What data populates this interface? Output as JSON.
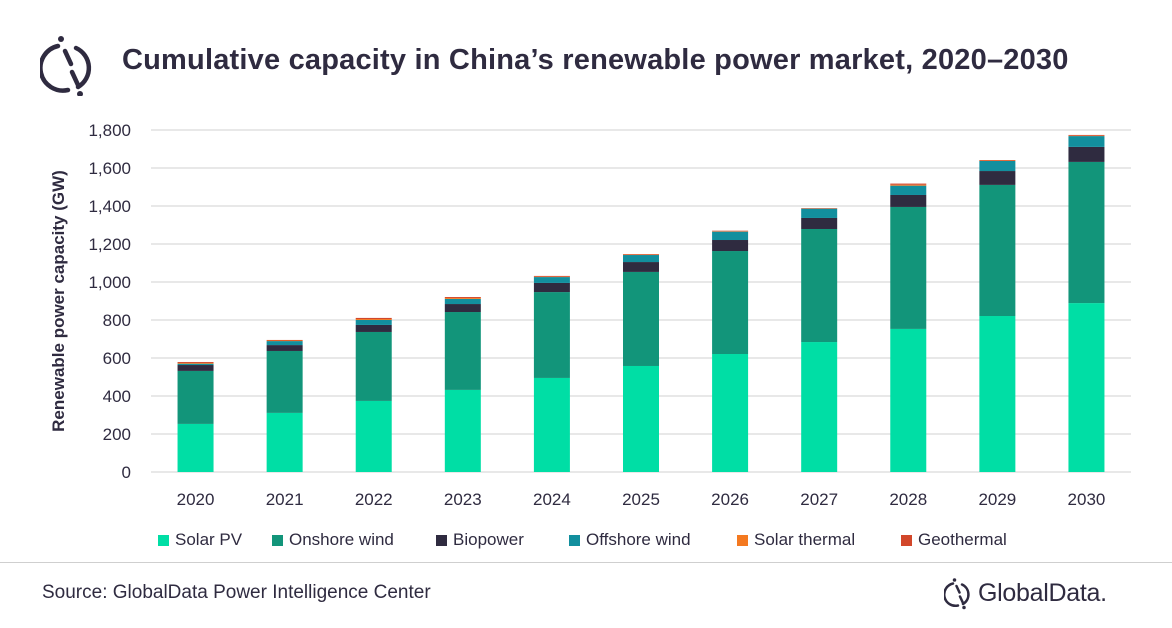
{
  "header": {
    "title": "Cumulative capacity in China’s renewable power market, 2020–2030"
  },
  "footer": {
    "source": "Source: GlobalData Power Intelligence Center",
    "brand": "GlobalData."
  },
  "chart_data": {
    "type": "bar",
    "stacked": true,
    "title": "Cumulative capacity in China’s renewable power market, 2020–2030",
    "xlabel": "",
    "ylabel": "Renewable power capacity (GW)",
    "ylim": [
      0,
      1800
    ],
    "yticks": [
      0,
      200,
      400,
      600,
      800,
      1000,
      1200,
      1400,
      1600,
      1800
    ],
    "ytick_labels": [
      "0",
      "200",
      "400",
      "600",
      "800",
      "1,000",
      "1,200",
      "1,400",
      "1,600",
      "1,800"
    ],
    "grid": true,
    "legend_position": "bottom",
    "categories": [
      "2020",
      "2021",
      "2022",
      "2023",
      "2024",
      "2025",
      "2026",
      "2027",
      "2028",
      "2029",
      "2030"
    ],
    "series": [
      {
        "name": "Solar PV",
        "color": "#00dea5",
        "values": [
          253,
          311,
          374,
          432,
          495,
          558,
          621,
          684,
          753,
          821,
          889
        ]
      },
      {
        "name": "Onshore wind",
        "color": "#12957a",
        "values": [
          279,
          326,
          363,
          410,
          452,
          495,
          542,
          595,
          642,
          690,
          743
        ]
      },
      {
        "name": "Biopower",
        "color": "#2f2b40",
        "values": [
          31,
          31,
          37,
          42,
          48,
          52,
          58,
          58,
          63,
          73,
          79
        ]
      },
      {
        "name": "Offshore wind",
        "color": "#128f9e",
        "values": [
          7,
          21,
          26,
          27,
          31,
          37,
          44,
          49,
          49,
          53,
          57
        ]
      },
      {
        "name": "Solar thermal",
        "color": "#f47920",
        "values": [
          4,
          3,
          5,
          5,
          2,
          2,
          2,
          1,
          5,
          2,
          2
        ]
      },
      {
        "name": "Geothermal",
        "color": "#d2472a",
        "values": [
          5,
          3,
          6,
          5,
          4,
          3,
          3,
          2,
          6,
          3,
          4
        ]
      }
    ]
  }
}
